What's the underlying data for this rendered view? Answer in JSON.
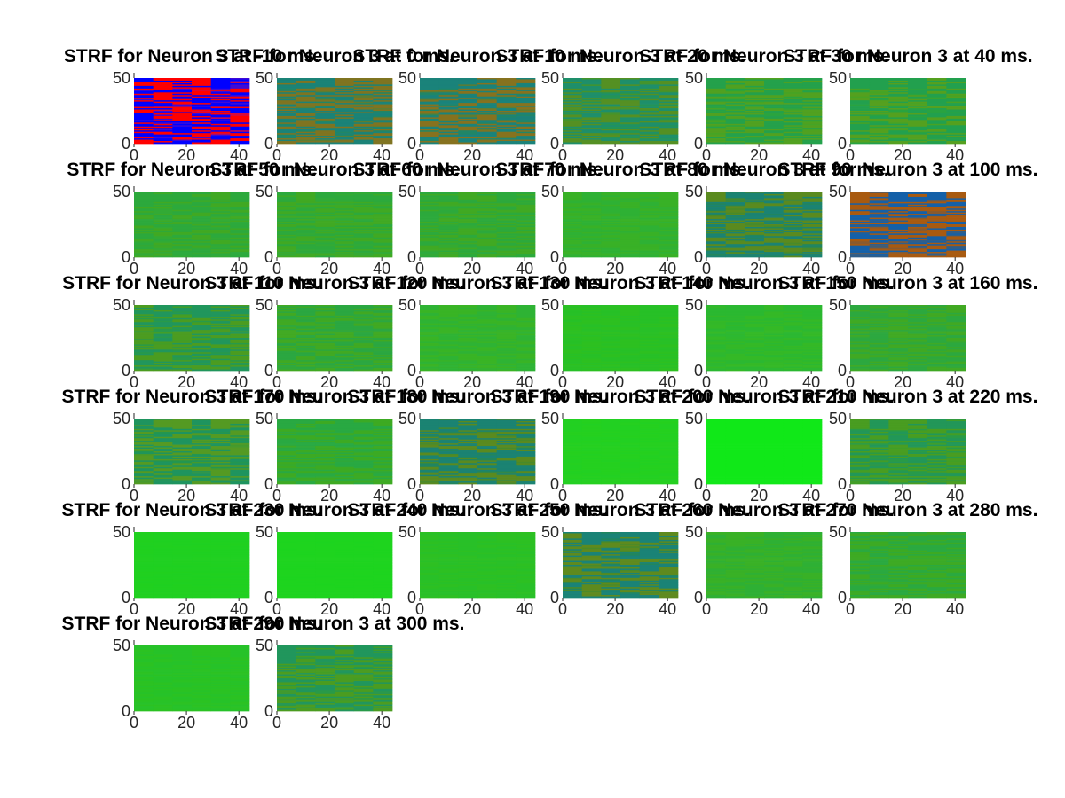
{
  "figure": {
    "background": "#ffffff"
  },
  "chart_data": {
    "type": "heatmap",
    "layout": {
      "rows": 6,
      "cols": 6,
      "panel_count": 32
    },
    "x_ticks": [
      "0",
      "20",
      "40"
    ],
    "y_ticks": [
      "0",
      "50"
    ],
    "xlim": [
      0,
      44
    ],
    "ylim": [
      0,
      50
    ],
    "grid": false,
    "legend": "none",
    "colormap": "unknown",
    "panels": [
      {
        "title": "STRF for Neuron 3 at -10 ms.",
        "palette": [
          "#ff0000",
          "#0000ff",
          "#9a1a9a"
        ],
        "contrast": 1.0
      },
      {
        "title": "STRF for Neuron 3 at 0 ms.",
        "palette": [
          "#a46a10",
          "#14808a",
          "#2a8a4a"
        ],
        "contrast": 0.7
      },
      {
        "title": "STRF for Neuron 3 at 10 ms.",
        "palette": [
          "#a46a10",
          "#14808a",
          "#2a8a4a"
        ],
        "contrast": 0.75
      },
      {
        "title": "STRF for Neuron 3 at 20 ms.",
        "palette": [
          "#6e8a14",
          "#14888a",
          "#2c9a3a"
        ],
        "contrast": 0.6
      },
      {
        "title": "STRF for Neuron 3 at 30 ms.",
        "palette": [
          "#6e9a14",
          "#149a6a",
          "#34a82c"
        ],
        "contrast": 0.5
      },
      {
        "title": "STRF for Neuron 3 at 40 ms.",
        "palette": [
          "#6e9a14",
          "#149a6a",
          "#34a82c"
        ],
        "contrast": 0.55
      },
      {
        "title": "STRF for Neuron 3 at 50 ms.",
        "palette": [
          "#4aa818",
          "#18a858",
          "#3aaa2a"
        ],
        "contrast": 0.4
      },
      {
        "title": "STRF for Neuron 3 at 60 ms.",
        "palette": [
          "#4aa818",
          "#18a858",
          "#3aaa2a"
        ],
        "contrast": 0.4
      },
      {
        "title": "STRF for Neuron 3 at 70 ms.",
        "palette": [
          "#4aa818",
          "#18a858",
          "#3aaa2a"
        ],
        "contrast": 0.4
      },
      {
        "title": "STRF for Neuron 3 at 80 ms.",
        "palette": [
          "#3ab41c",
          "#18b44a",
          "#38b02a"
        ],
        "contrast": 0.3
      },
      {
        "title": "STRF for Neuron 3 at 90 ms.",
        "palette": [
          "#6e8a14",
          "#14808a",
          "#2c8a3a"
        ],
        "contrast": 0.7
      },
      {
        "title": "STRF for Neuron 3 at 100 ms.",
        "palette": [
          "#a85a10",
          "#1460a8",
          "#5a5a5a"
        ],
        "contrast": 1.0
      },
      {
        "title": "STRF for Neuron 3 at 110 ms.",
        "palette": [
          "#5a9a16",
          "#14907a",
          "#34a02e"
        ],
        "contrast": 0.6
      },
      {
        "title": "STRF for Neuron 3 at 120 ms.",
        "palette": [
          "#4aa818",
          "#18a45e",
          "#3aaa2a"
        ],
        "contrast": 0.45
      },
      {
        "title": "STRF for Neuron 3 at 130 ms.",
        "palette": [
          "#3ab81a",
          "#18b44a",
          "#38b22a"
        ],
        "contrast": 0.3
      },
      {
        "title": "STRF for Neuron 3 at 140 ms.",
        "palette": [
          "#30c018",
          "#14c03a",
          "#2cc022"
        ],
        "contrast": 0.2
      },
      {
        "title": "STRF for Neuron 3 at 150 ms.",
        "palette": [
          "#38ba1a",
          "#16b846",
          "#32b82a"
        ],
        "contrast": 0.25
      },
      {
        "title": "STRF for Neuron 3 at 160 ms.",
        "palette": [
          "#4aa818",
          "#18a45e",
          "#3aaa2a"
        ],
        "contrast": 0.4
      },
      {
        "title": "STRF for Neuron 3 at 170 ms.",
        "palette": [
          "#6e9a14",
          "#149078",
          "#2c9a3a"
        ],
        "contrast": 0.6
      },
      {
        "title": "STRF for Neuron 3 at 180 ms.",
        "palette": [
          "#44aa18",
          "#16a860",
          "#38aa2a"
        ],
        "contrast": 0.45
      },
      {
        "title": "STRF for Neuron 3 at 190 ms.",
        "palette": [
          "#6e8a14",
          "#14808a",
          "#2c8a3a"
        ],
        "contrast": 0.7
      },
      {
        "title": "STRF for Neuron 3 at 200 ms.",
        "palette": [
          "#2cd41a",
          "#14d030",
          "#24d020"
        ],
        "contrast": 0.12
      },
      {
        "title": "STRF for Neuron 3 at 210 ms.",
        "palette": [
          "#10e818",
          "#10e81c",
          "#10e818"
        ],
        "contrast": 0.03
      },
      {
        "title": "STRF for Neuron 3 at 220 ms.",
        "palette": [
          "#5a9a16",
          "#14907a",
          "#34a02e"
        ],
        "contrast": 0.55
      },
      {
        "title": "STRF for Neuron 3 at 230 ms.",
        "palette": [
          "#24d01a",
          "#14d02c",
          "#20d020"
        ],
        "contrast": 0.1
      },
      {
        "title": "STRF for Neuron 3 at 240 ms.",
        "palette": [
          "#20d41a",
          "#14d42a",
          "#1ed41e"
        ],
        "contrast": 0.08
      },
      {
        "title": "STRF for Neuron 3 at 250 ms.",
        "palette": [
          "#32c21a",
          "#16c03a",
          "#2cc024"
        ],
        "contrast": 0.2
      },
      {
        "title": "STRF for Neuron 3 at 260 ms.",
        "palette": [
          "#6e8a14",
          "#14808a",
          "#2c8a3a"
        ],
        "contrast": 0.75
      },
      {
        "title": "STRF for Neuron 3 at 270 ms.",
        "palette": [
          "#3ab41c",
          "#18b04c",
          "#38b02a"
        ],
        "contrast": 0.3
      },
      {
        "title": "STRF for Neuron 3 at 280 ms.",
        "palette": [
          "#44aa18",
          "#16a860",
          "#38aa2a"
        ],
        "contrast": 0.4
      },
      {
        "title": "STRF for Neuron 3 at 290 ms.",
        "palette": [
          "#30c41a",
          "#16c03c",
          "#2ac224"
        ],
        "contrast": 0.2
      },
      {
        "title": "STRF for Neuron 3 at 300 ms.",
        "palette": [
          "#5a9a16",
          "#14907a",
          "#34a02e"
        ],
        "contrast": 0.6
      }
    ]
  }
}
